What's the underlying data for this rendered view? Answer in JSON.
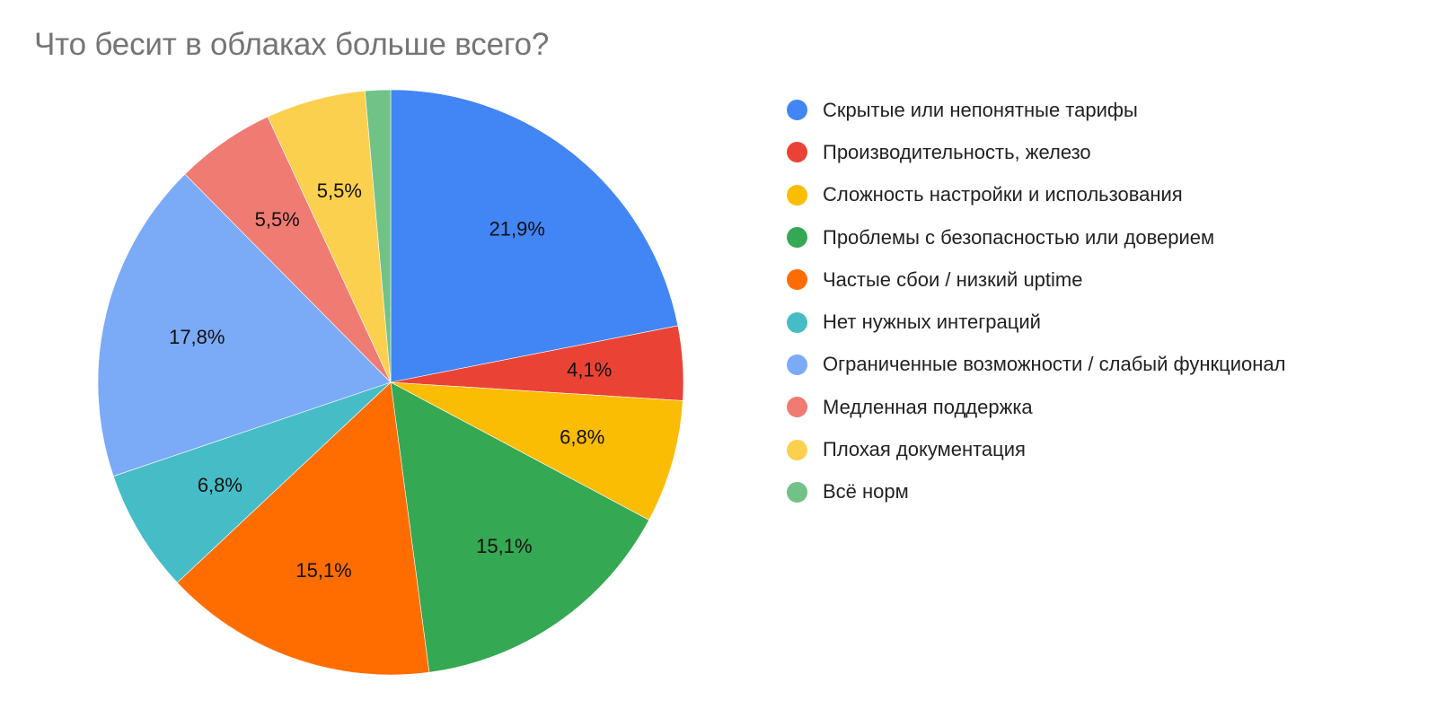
{
  "chart_data": {
    "type": "pie",
    "title": "Что бесит в облаках больше всего?",
    "start_angle_deg": 0,
    "direction": "clockwise",
    "legend_position": "right",
    "slices": [
      {
        "label": "Скрытые или непонятные тарифы",
        "value": 21.9,
        "display": "21,9%",
        "color": "#4285F4"
      },
      {
        "label": "Производительность, железо",
        "value": 4.1,
        "display": "4,1%",
        "color": "#EA4335"
      },
      {
        "label": "Сложность настройки и использования",
        "value": 6.8,
        "display": "6,8%",
        "color": "#FBBC04"
      },
      {
        "label": "Проблемы с безопасностью или доверием",
        "value": 15.1,
        "display": "15,1%",
        "color": "#34A853"
      },
      {
        "label": "Частые сбои / низкий uptime",
        "value": 15.1,
        "display": "15,1%",
        "color": "#FF6D01"
      },
      {
        "label": "Нет нужных интеграций",
        "value": 6.8,
        "display": "6,8%",
        "color": "#46BDC6"
      },
      {
        "label": "Ограниченные возможности / слабый функционал",
        "value": 17.8,
        "display": "17,8%",
        "color": "#7BAAF7"
      },
      {
        "label": "Медленная поддержка",
        "value": 5.5,
        "display": "5,5%",
        "color": "#F07B72"
      },
      {
        "label": "Плохая документация",
        "value": 5.5,
        "display": "5,5%",
        "color": "#FCD04F"
      },
      {
        "label": "Всё норм",
        "value": 1.4,
        "display": "",
        "color": "#71C287"
      }
    ]
  },
  "title": "Что бесит в облаках больше всего?",
  "legend": {
    "items": [
      {
        "label": "Скрытые или непонятные тарифы",
        "color": "#4285F4"
      },
      {
        "label": "Производительность, железо",
        "color": "#EA4335"
      },
      {
        "label": "Сложность настройки и использования",
        "color": "#FBBC04"
      },
      {
        "label": "Проблемы с безопасностью или доверием",
        "color": "#34A853"
      },
      {
        "label": "Частые сбои / низкий uptime",
        "color": "#FF6D01"
      },
      {
        "label": "Нет нужных интеграций",
        "color": "#46BDC6"
      },
      {
        "label": "Ограниченные возможности / слабый функционал",
        "color": "#7BAAF7"
      },
      {
        "label": "Медленная поддержка",
        "color": "#F07B72"
      },
      {
        "label": "Плохая документация",
        "color": "#FCD04F"
      },
      {
        "label": "Всё норм",
        "color": "#71C287"
      }
    ]
  }
}
